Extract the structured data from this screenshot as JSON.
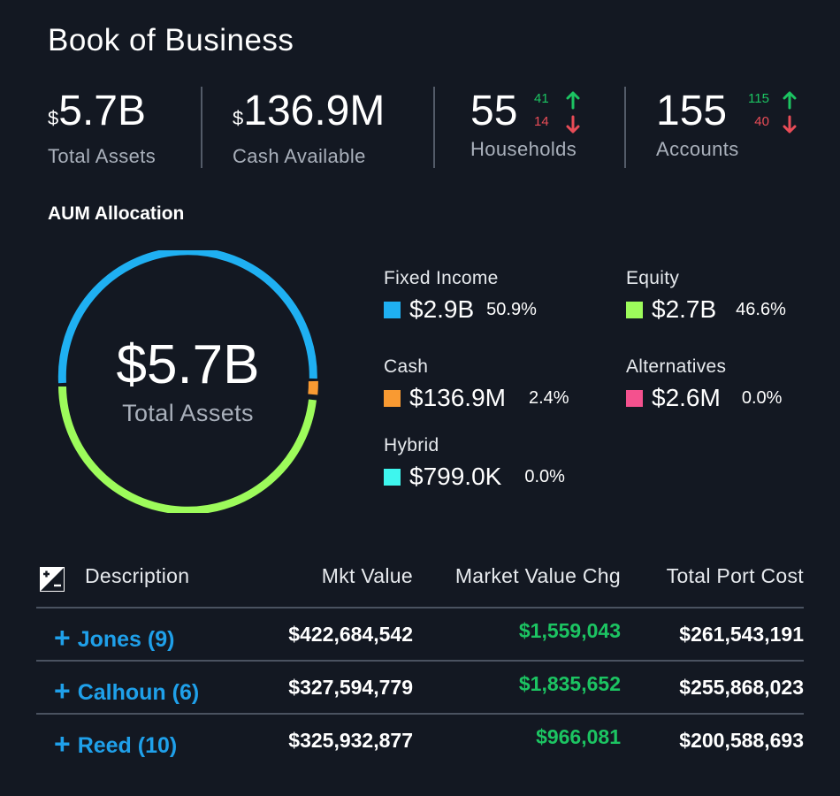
{
  "title": "Book of Business",
  "kpis": {
    "total_assets": {
      "currency": "$",
      "value": "5.7B",
      "label": "Total Assets"
    },
    "cash_available": {
      "currency": "$",
      "value": "136.9M",
      "label": "Cash Available"
    },
    "households": {
      "value": "55",
      "label": "Households",
      "up": "41",
      "down": "14"
    },
    "accounts": {
      "value": "155",
      "label": "Accounts",
      "up": "115",
      "down": "40"
    }
  },
  "aum": {
    "title": "AUM Allocation",
    "center_value": "$5.7B",
    "center_label": "Total Assets",
    "legend": [
      {
        "name": "Fixed Income",
        "amount": "$2.9B",
        "pct": "50.9%",
        "color": "#1fb0f2"
      },
      {
        "name": "Equity",
        "amount": "$2.7B",
        "pct": "46.6%",
        "color": "#9dfb5b"
      },
      {
        "name": "Cash",
        "amount": "$136.9M",
        "pct": "2.4%",
        "color": "#f99a32"
      },
      {
        "name": "Alternatives",
        "amount": "$2.6M",
        "pct": "0.0%",
        "color": "#f4518e"
      },
      {
        "name": "Hybrid",
        "amount": "$799.0K",
        "pct": "0.0%",
        "color": "#3ef6ee"
      }
    ]
  },
  "table": {
    "headers": {
      "description": "Description",
      "mkt_value": "Mkt Value",
      "mkt_value_chg": "Market Value Chg",
      "total_port_cost": "Total Port Cost"
    },
    "rows": [
      {
        "name": "Jones (9)",
        "mkt_value": "$422,684,542",
        "chg": "$1,559,043",
        "cost": "$261,543,191"
      },
      {
        "name": "Calhoun (6)",
        "mkt_value": "$327,594,779",
        "chg": "$1,835,652",
        "cost": "$255,868,023"
      },
      {
        "name": "Reed (10)",
        "mkt_value": "$325,932,877",
        "chg": "$966,081",
        "cost": "$200,588,693"
      }
    ]
  },
  "icons": {
    "expand": "plus-icon",
    "toggle": "plus-minus-toggle-icon",
    "up": "arrow-up-icon",
    "down": "arrow-down-icon"
  }
}
